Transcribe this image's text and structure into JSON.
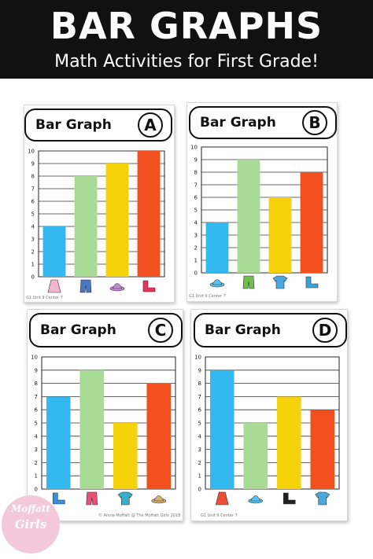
{
  "header": {
    "title": "BAR GRAPHS",
    "subtitle": "Math Activities for First Grade!"
  },
  "logo": {
    "line1": "Moffatt",
    "line2": "Girls"
  },
  "colors": {
    "banner": "#111111",
    "bars": [
      "#33b8f0",
      "#a8dc96",
      "#f6d20a",
      "#f2501e"
    ],
    "logo": "#f3c8d8"
  },
  "cards": [
    {
      "title": "Bar Graph",
      "letter": "A",
      "footer": "G1 Unit 9 Center 7",
      "items": [
        "dress-icon",
        "jeans-icon",
        "sun-hat-icon",
        "sandals-icon"
      ]
    },
    {
      "title": "Bar Graph",
      "letter": "B",
      "footer": "G1 Unit 9 Center 7",
      "items": [
        "cap-icon",
        "shorts-icon",
        "jacket-icon",
        "boots-icon"
      ]
    },
    {
      "title": "Bar Graph",
      "letter": "C",
      "footer": "© Annie Moffatt @ The Moffatt Girls 2018",
      "items": [
        "rain-boots-icon",
        "pants-icon",
        "t-shirt-icon",
        "bucket-hat-icon"
      ]
    },
    {
      "title": "Bar Graph",
      "letter": "D",
      "footer": "G1 Unit 9 Center 7",
      "items": [
        "skirt-icon",
        "beanie-icon",
        "fire-boots-icon",
        "shirt-icon"
      ]
    }
  ],
  "chart_data": [
    {
      "type": "bar",
      "title": "Bar Graph A",
      "ylim": [
        0,
        10
      ],
      "yticks": [
        0,
        1,
        2,
        3,
        4,
        5,
        6,
        7,
        8,
        9,
        10
      ],
      "grid": true,
      "categories": [
        "dress",
        "jeans",
        "sun hat",
        "sandals"
      ],
      "values": [
        4,
        8,
        9,
        10
      ]
    },
    {
      "type": "bar",
      "title": "Bar Graph B",
      "ylim": [
        0,
        10
      ],
      "yticks": [
        0,
        1,
        2,
        3,
        4,
        5,
        6,
        7,
        8,
        9,
        10
      ],
      "grid": true,
      "categories": [
        "cap",
        "shorts",
        "jacket",
        "boots"
      ],
      "values": [
        4,
        9,
        6,
        8
      ]
    },
    {
      "type": "bar",
      "title": "Bar Graph C",
      "ylim": [
        0,
        10
      ],
      "yticks": [
        0,
        1,
        2,
        3,
        4,
        5,
        6,
        7,
        8,
        9,
        10
      ],
      "grid": true,
      "categories": [
        "rain boots",
        "pants",
        "t-shirt",
        "bucket hat"
      ],
      "values": [
        7,
        9,
        5,
        8
      ]
    },
    {
      "type": "bar",
      "title": "Bar Graph D",
      "ylim": [
        0,
        10
      ],
      "yticks": [
        0,
        1,
        2,
        3,
        4,
        5,
        6,
        7,
        8,
        9,
        10
      ],
      "grid": true,
      "categories": [
        "skirt",
        "beanie",
        "fire boots",
        "shirt"
      ],
      "values": [
        9,
        5,
        7,
        6
      ]
    }
  ]
}
